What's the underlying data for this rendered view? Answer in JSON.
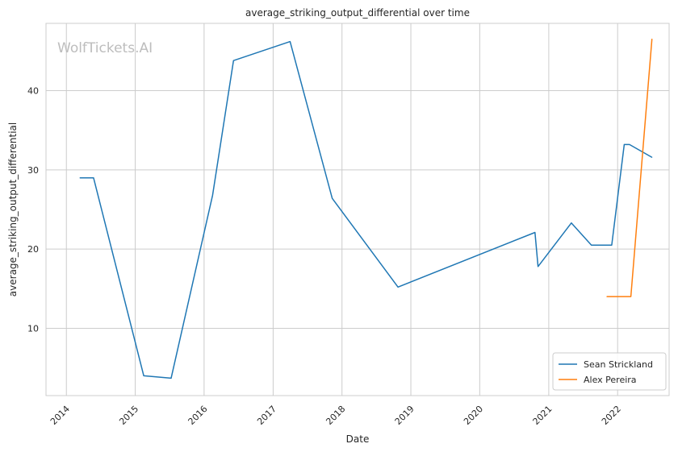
{
  "chart_data": {
    "type": "line",
    "title": "average_striking_output_differential over time",
    "xlabel": "Date",
    "ylabel": "average_striking_output_differential",
    "watermark": "WolfTickets.AI",
    "xlim": [
      "2013-09-15",
      "2022-10-01"
    ],
    "ylim": [
      1.5,
      48.5
    ],
    "x_ticks": [
      "2014",
      "2015",
      "2016",
      "2017",
      "2018",
      "2019",
      "2020",
      "2021",
      "2022"
    ],
    "y_ticks": [
      10,
      20,
      30,
      40
    ],
    "grid": true,
    "legend_position": "bottom-right",
    "series": [
      {
        "name": "Sean Strickland",
        "color": "#1f77b4",
        "x": [
          "2014-03-15",
          "2014-05-25",
          "2015-02-15",
          "2015-07-10",
          "2016-02-15",
          "2016-06-05",
          "2017-04-01",
          "2017-11-10",
          "2018-10-25",
          "2020-10-20",
          "2020-11-05",
          "2021-05-01",
          "2021-08-15",
          "2021-12-01",
          "2022-02-05",
          "2022-03-05",
          "2022-07-01"
        ],
        "y": [
          29.0,
          29.0,
          4.0,
          3.7,
          26.8,
          43.8,
          46.2,
          26.4,
          15.2,
          22.1,
          17.8,
          23.3,
          20.5,
          20.5,
          33.2,
          33.2,
          31.6
        ]
      },
      {
        "name": "Alex Pereira",
        "color": "#ff7f0e",
        "x": [
          "2021-11-06",
          "2022-03-12",
          "2022-07-02"
        ],
        "y": [
          14.0,
          14.0,
          46.5
        ]
      }
    ]
  }
}
